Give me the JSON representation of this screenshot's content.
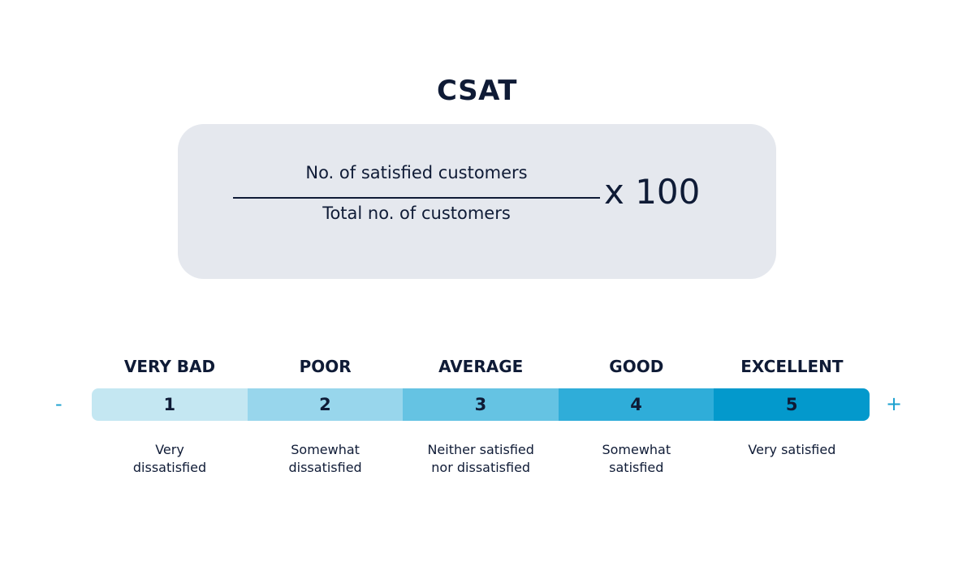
{
  "title": "CSAT",
  "formula": {
    "numerator": "No. of satisfied customers",
    "denominator": "Total no. of customers",
    "multiplier": "x 100"
  },
  "scale": {
    "min_sign": "-",
    "max_sign": "+",
    "levels": [
      {
        "label": "VERY BAD",
        "value": "1",
        "description": "Very\ndissatisfied",
        "color": "#c4e7f2"
      },
      {
        "label": "POOR",
        "value": "2",
        "description": "Somewhat\ndissatisfied",
        "color": "#98d6ec"
      },
      {
        "label": "AVERAGE",
        "value": "3",
        "description": "Neither satisfied\nnor dissatisfied",
        "color": "#65c3e3"
      },
      {
        "label": "GOOD",
        "value": "4",
        "description": "Somewhat\nsatisfied",
        "color": "#2fadd9"
      },
      {
        "label": "EXCELLENT",
        "value": "5",
        "description": "Very satisfied",
        "color": "#0399cc"
      }
    ]
  }
}
